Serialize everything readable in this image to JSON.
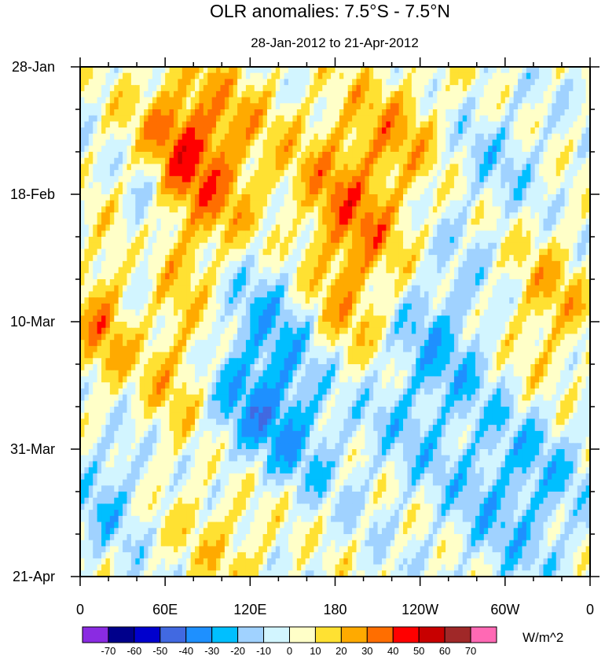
{
  "chart_data": {
    "type": "heatmap",
    "title": "OLR anomalies: 7.5°S - 7.5°N",
    "subtitle": "28-Jan-2012 to 21-Apr-2012",
    "x_ticks": [
      {
        "label": "0",
        "lon": 0
      },
      {
        "label": "60E",
        "lon": 60
      },
      {
        "label": "120E",
        "lon": 120
      },
      {
        "label": "180",
        "lon": 180
      },
      {
        "label": "120W",
        "lon": 240
      },
      {
        "label": "60W",
        "lon": 300
      },
      {
        "label": "0",
        "lon": 360
      }
    ],
    "y_ticks": [
      {
        "label": "28-Jan",
        "day": 0
      },
      {
        "label": "18-Feb",
        "day": 21
      },
      {
        "label": "10-Mar",
        "day": 42
      },
      {
        "label": "31-Mar",
        "day": 63
      },
      {
        "label": "21-Apr",
        "day": 84
      }
    ],
    "colorbar": {
      "unit": "W/m^2",
      "levels": [
        "-70",
        "-60",
        "-50",
        "-40",
        "-30",
        "-20",
        "-10",
        "0",
        "10",
        "20",
        "30",
        "40",
        "50",
        "60",
        "70"
      ],
      "colors": [
        "#8a2be2",
        "#00008b",
        "#0000cd",
        "#4169e1",
        "#1e90ff",
        "#00bfff",
        "#a0d2ff",
        "#d2f5ff",
        "#ffffc8",
        "#ffe132",
        "#ffaa00",
        "#ff6e00",
        "#ff0000",
        "#c80000",
        "#a02828",
        "#ff69b4"
      ]
    }
  }
}
